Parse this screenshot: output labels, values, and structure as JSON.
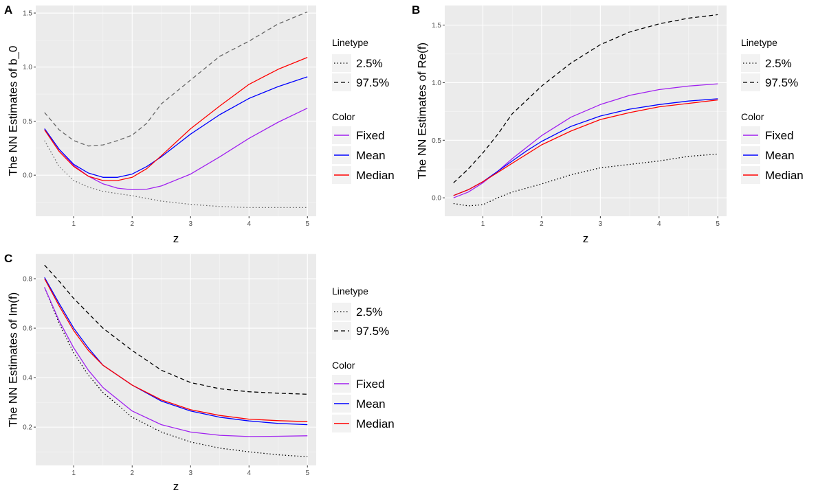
{
  "chart_data": [
    {
      "tag": "A",
      "type": "line",
      "xlabel": "z",
      "ylabel": "The NN Estimates of b_0",
      "xlim": [
        0.35,
        5.15
      ],
      "ylim": [
        -0.38,
        1.57
      ],
      "xticks": [
        1,
        2,
        3,
        4,
        5
      ],
      "yticks": [
        0.0,
        0.5,
        1.0,
        1.5
      ],
      "ytick_labels": [
        "0.0",
        "0.5",
        "1.0",
        "1.5"
      ],
      "legend": {
        "linetype_title": "Linetype",
        "linetype_entries": [
          {
            "label": "2.5%",
            "dash": "dotted"
          },
          {
            "label": "97.5%",
            "dash": "dashed"
          }
        ],
        "color_title": "Color",
        "color_entries": [
          {
            "label": "Fixed",
            "color": "#a020f0"
          },
          {
            "label": "Mean",
            "color": "#0000ff"
          },
          {
            "label": "Median",
            "color": "#ff0000"
          }
        ]
      },
      "series": [
        {
          "name": "97.5%",
          "color": "#666666",
          "dash": "dashed",
          "x": [
            0.5,
            0.75,
            1.0,
            1.25,
            1.5,
            1.75,
            2.0,
            2.25,
            2.5,
            3.0,
            3.5,
            4.0,
            4.5,
            5.0
          ],
          "y": [
            0.58,
            0.42,
            0.32,
            0.27,
            0.28,
            0.32,
            0.37,
            0.48,
            0.66,
            0.88,
            1.1,
            1.24,
            1.4,
            1.51
          ]
        },
        {
          "name": "2.5%",
          "color": "#666666",
          "dash": "dotted",
          "x": [
            0.5,
            0.75,
            1.0,
            1.25,
            1.5,
            2.0,
            2.5,
            3.0,
            3.5,
            4.0,
            4.5,
            5.0
          ],
          "y": [
            0.32,
            0.08,
            -0.05,
            -0.11,
            -0.15,
            -0.19,
            -0.24,
            -0.27,
            -0.29,
            -0.3,
            -0.3,
            -0.3
          ]
        },
        {
          "name": "Fixed",
          "color": "#a020f0",
          "dash": "solid",
          "x": [
            0.5,
            0.75,
            1.0,
            1.25,
            1.5,
            1.75,
            2.0,
            2.25,
            2.5,
            3.0,
            3.5,
            4.0,
            4.5,
            5.0
          ],
          "y": [
            0.43,
            0.24,
            0.09,
            -0.01,
            -0.08,
            -0.12,
            -0.135,
            -0.13,
            -0.1,
            0.01,
            0.17,
            0.34,
            0.49,
            0.62
          ]
        },
        {
          "name": "Mean",
          "color": "#0000ff",
          "dash": "solid",
          "x": [
            0.5,
            0.75,
            1.0,
            1.25,
            1.5,
            1.75,
            2.0,
            2.25,
            2.5,
            3.0,
            3.5,
            4.0,
            4.5,
            5.0
          ],
          "y": [
            0.43,
            0.24,
            0.1,
            0.02,
            -0.02,
            -0.02,
            0.01,
            0.08,
            0.17,
            0.38,
            0.56,
            0.71,
            0.82,
            0.91
          ]
        },
        {
          "name": "Median",
          "color": "#ff0000",
          "dash": "solid",
          "x": [
            0.5,
            0.75,
            1.0,
            1.25,
            1.5,
            1.75,
            2.0,
            2.25,
            2.5,
            3.0,
            3.5,
            4.0,
            4.5,
            5.0
          ],
          "y": [
            0.42,
            0.22,
            0.08,
            -0.01,
            -0.05,
            -0.05,
            -0.02,
            0.06,
            0.18,
            0.43,
            0.64,
            0.84,
            0.98,
            1.09
          ]
        }
      ]
    },
    {
      "tag": "B",
      "type": "line",
      "xlabel": "z",
      "ylabel": "The NN Estimates of Re(f)",
      "xlim": [
        0.35,
        5.15
      ],
      "ylim": [
        -0.16,
        1.67
      ],
      "xticks": [
        1,
        2,
        3,
        4,
        5
      ],
      "yticks": [
        0.0,
        0.5,
        1.0,
        1.5
      ],
      "ytick_labels": [
        "0.0",
        "0.5",
        "1.0",
        "1.5"
      ],
      "legend": {
        "linetype_title": "Linetype",
        "linetype_entries": [
          {
            "label": "2.5%",
            "dash": "dotted"
          },
          {
            "label": "97.5%",
            "dash": "dashed"
          }
        ],
        "color_title": "Color",
        "color_entries": [
          {
            "label": "Fixed",
            "color": "#a020f0"
          },
          {
            "label": "Mean",
            "color": "#0000ff"
          },
          {
            "label": "Median",
            "color": "#ff0000"
          }
        ]
      },
      "series": [
        {
          "name": "97.5%",
          "color": "#000000",
          "dash": "dashed",
          "x": [
            0.5,
            0.75,
            1.0,
            1.25,
            1.5,
            1.75,
            2.0,
            2.5,
            3.0,
            3.5,
            4.0,
            4.5,
            5.0
          ],
          "y": [
            0.13,
            0.25,
            0.39,
            0.55,
            0.73,
            0.85,
            0.97,
            1.17,
            1.33,
            1.44,
            1.51,
            1.56,
            1.59
          ]
        },
        {
          "name": "2.5%",
          "color": "#000000",
          "dash": "dotted",
          "x": [
            0.5,
            0.75,
            1.0,
            1.25,
            1.5,
            2.0,
            2.5,
            3.0,
            3.5,
            4.0,
            4.5,
            5.0
          ],
          "y": [
            -0.05,
            -0.07,
            -0.06,
            0.0,
            0.05,
            0.12,
            0.2,
            0.26,
            0.29,
            0.32,
            0.36,
            0.38
          ]
        },
        {
          "name": "Fixed",
          "color": "#a020f0",
          "dash": "solid",
          "x": [
            0.5,
            0.75,
            1.0,
            1.25,
            1.5,
            1.75,
            2.0,
            2.5,
            3.0,
            3.5,
            4.0,
            4.5,
            5.0
          ],
          "y": [
            0.0,
            0.05,
            0.13,
            0.23,
            0.34,
            0.44,
            0.54,
            0.7,
            0.81,
            0.89,
            0.94,
            0.97,
            0.99
          ]
        },
        {
          "name": "Mean",
          "color": "#0000ff",
          "dash": "solid",
          "x": [
            0.5,
            0.75,
            1.0,
            1.25,
            1.5,
            1.75,
            2.0,
            2.5,
            3.0,
            3.5,
            4.0,
            4.5,
            5.0
          ],
          "y": [
            0.02,
            0.07,
            0.14,
            0.23,
            0.32,
            0.41,
            0.49,
            0.62,
            0.71,
            0.77,
            0.81,
            0.84,
            0.86
          ]
        },
        {
          "name": "Median",
          "color": "#ff0000",
          "dash": "solid",
          "x": [
            0.5,
            0.75,
            1.0,
            1.25,
            1.5,
            1.75,
            2.0,
            2.5,
            3.0,
            3.5,
            4.0,
            4.5,
            5.0
          ],
          "y": [
            0.02,
            0.07,
            0.14,
            0.22,
            0.3,
            0.38,
            0.46,
            0.58,
            0.68,
            0.74,
            0.79,
            0.82,
            0.85
          ]
        }
      ]
    },
    {
      "tag": "C",
      "type": "line",
      "xlabel": "z",
      "ylabel": "The NN Estimates of Im(f)",
      "xlim": [
        0.35,
        5.15
      ],
      "ylim": [
        0.045,
        0.9
      ],
      "xticks": [
        1,
        2,
        3,
        4,
        5
      ],
      "yticks": [
        0.2,
        0.4,
        0.6,
        0.8
      ],
      "ytick_labels": [
        "0.2",
        "0.4",
        "0.6",
        "0.8"
      ],
      "legend": {
        "linetype_title": "Linetype",
        "linetype_entries": [
          {
            "label": "2.5%",
            "dash": "dotted"
          },
          {
            "label": "97.5%",
            "dash": "dashed"
          }
        ],
        "color_title": "Color",
        "color_entries": [
          {
            "label": "Fixed",
            "color": "#a020f0"
          },
          {
            "label": "Mean",
            "color": "#0000ff"
          },
          {
            "label": "Median",
            "color": "#ff0000"
          }
        ]
      },
      "series": [
        {
          "name": "97.5%",
          "color": "#000000",
          "dash": "dashed",
          "x": [
            0.5,
            0.75,
            1.0,
            1.25,
            1.5,
            2.0,
            2.5,
            3.0,
            3.5,
            4.0,
            4.5,
            5.0
          ],
          "y": [
            0.855,
            0.79,
            0.72,
            0.66,
            0.6,
            0.51,
            0.43,
            0.38,
            0.355,
            0.343,
            0.337,
            0.333
          ]
        },
        {
          "name": "2.5%",
          "color": "#000000",
          "dash": "dotted",
          "x": [
            0.5,
            0.75,
            1.0,
            1.25,
            1.5,
            2.0,
            2.5,
            3.0,
            3.5,
            4.0,
            4.5,
            5.0
          ],
          "y": [
            0.765,
            0.62,
            0.5,
            0.41,
            0.34,
            0.24,
            0.18,
            0.14,
            0.115,
            0.1,
            0.088,
            0.08
          ]
        },
        {
          "name": "Fixed",
          "color": "#a020f0",
          "dash": "solid",
          "x": [
            0.5,
            0.75,
            1.0,
            1.25,
            1.5,
            2.0,
            2.5,
            3.0,
            3.5,
            4.0,
            4.5,
            5.0
          ],
          "y": [
            0.765,
            0.63,
            0.52,
            0.43,
            0.36,
            0.265,
            0.21,
            0.18,
            0.167,
            0.162,
            0.163,
            0.165
          ]
        },
        {
          "name": "Mean",
          "color": "#0000ff",
          "dash": "solid",
          "x": [
            0.5,
            0.75,
            1.0,
            1.25,
            1.5,
            2.0,
            2.5,
            3.0,
            3.5,
            4.0,
            4.5,
            5.0
          ],
          "y": [
            0.805,
            0.7,
            0.6,
            0.52,
            0.45,
            0.37,
            0.305,
            0.265,
            0.24,
            0.225,
            0.215,
            0.21
          ]
        },
        {
          "name": "Median",
          "color": "#ff0000",
          "dash": "solid",
          "x": [
            0.5,
            0.75,
            1.0,
            1.25,
            1.5,
            2.0,
            2.5,
            3.0,
            3.5,
            4.0,
            4.5,
            5.0
          ],
          "y": [
            0.8,
            0.69,
            0.59,
            0.51,
            0.45,
            0.37,
            0.31,
            0.27,
            0.247,
            0.232,
            0.226,
            0.222
          ]
        }
      ]
    }
  ]
}
